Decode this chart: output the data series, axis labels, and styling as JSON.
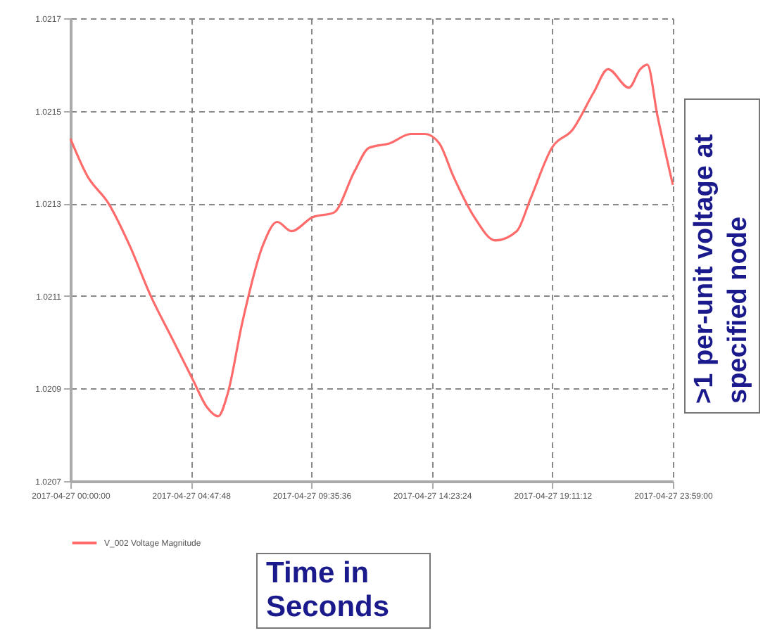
{
  "chart_data": {
    "type": "line",
    "x": [
      "2017-04-27T00:00",
      "2017-04-27T00:40",
      "2017-04-27T01:31",
      "2017-04-27T02:21",
      "2017-04-27T03:12",
      "2017-04-27T04:02",
      "2017-04-27T04:52",
      "2017-04-27T05:26",
      "2017-04-27T05:53",
      "2017-04-27T06:16",
      "2017-04-27T06:50",
      "2017-04-27T07:40",
      "2017-04-27T08:14",
      "2017-04-27T08:48",
      "2017-04-27T09:38",
      "2017-04-27T10:29",
      "2017-04-27T11:19",
      "2017-04-27T11:53",
      "2017-04-27T12:43",
      "2017-04-27T13:33",
      "2017-04-27T14:07",
      "2017-04-27T14:41",
      "2017-04-27T15:14",
      "2017-04-27T16:05",
      "2017-04-27T16:55",
      "2017-04-27T17:46",
      "2017-04-27T18:19",
      "2017-04-27T19:10",
      "2017-04-27T20:00",
      "2017-04-27T20:50",
      "2017-04-27T21:24",
      "2017-04-27T22:14",
      "2017-04-27T22:41",
      "2017-04-27T22:58",
      "2017-04-27T23:22",
      "2017-04-27T23:59"
    ],
    "series": [
      {
        "name": "V_002 Voltage Magnitude",
        "color": "#ff6b6b",
        "values": [
          1.02144,
          1.02136,
          1.0213,
          1.02121,
          1.0211,
          1.02101,
          1.02092,
          1.02086,
          1.02084,
          1.02089,
          1.02104,
          1.02121,
          1.02126,
          1.02124,
          1.02127,
          1.02128,
          1.02137,
          1.02142,
          1.02143,
          1.02145,
          1.02145,
          1.02143,
          1.02136,
          1.02127,
          1.02122,
          1.02124,
          1.02131,
          1.02142,
          1.02146,
          1.02154,
          1.02159,
          1.02155,
          1.02159,
          1.0216,
          1.02149,
          1.02134
        ]
      }
    ],
    "xlim": [
      "2017-04-27T00:00:00",
      "2017-04-27T23:59:00"
    ],
    "xticks": [
      {
        "value": "2017-04-27T00:00:00",
        "label": "2017-04-27 00:00:00"
      },
      {
        "value": "2017-04-27T04:47:48",
        "label": "2017-04-27 04:47:48"
      },
      {
        "value": "2017-04-27T09:35:36",
        "label": "2017-04-27 09:35:36"
      },
      {
        "value": "2017-04-27T14:23:24",
        "label": "2017-04-27 14:23:24"
      },
      {
        "value": "2017-04-27T19:11:12",
        "label": "2017-04-27 19:11:12"
      },
      {
        "value": "2017-04-27T23:59:00",
        "label": "2017-04-27 23:59:00"
      }
    ],
    "ylim": [
      1.0207,
      1.0217
    ],
    "yticks": [
      1.0207,
      1.0209,
      1.0211,
      1.0213,
      1.0215,
      1.0217
    ],
    "grid": true,
    "legend": "bottom left",
    "line_style": "solid",
    "marker": "none",
    "annotations": [
      "Time in Seconds",
      ">1 per-unit voltage at specified node"
    ]
  }
}
